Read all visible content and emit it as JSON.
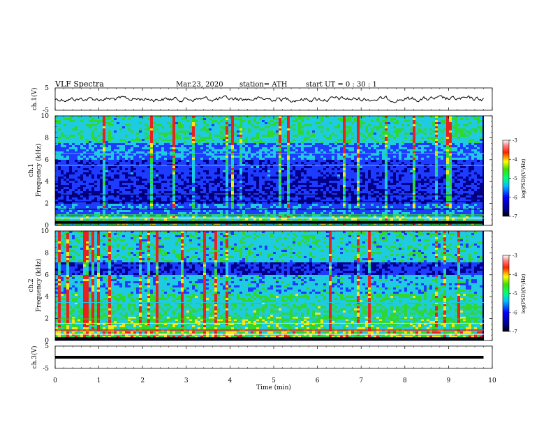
{
  "header": {
    "title": "VLF  Spectra",
    "date": "Mar.23, 2020",
    "station": "station= ATH",
    "start": "start  UT  =   0  : 30 : 1"
  },
  "chart_data": [
    {
      "type": "line",
      "name": "ch1-waveform",
      "ylabel": "ch.1(V)",
      "ylim": [
        -5,
        5
      ],
      "yticks": [
        "5",
        "-5"
      ],
      "trace_color": "#000000"
    },
    {
      "type": "heatmap",
      "name": "ch1-spectrogram",
      "ylabel": "ch.1\nFrequency  (kHz)",
      "ylabel_line1": "ch.1",
      "ylabel_line2": "Frequency  (kHz)",
      "ylim": [
        0,
        10
      ],
      "yticks": [
        "0",
        "2",
        "4",
        "6",
        "8",
        "10"
      ],
      "colorbar": {
        "label": "log(PSD)(V²/Hz)",
        "ticks": [
          "-3",
          "-4",
          "-5",
          "-6",
          "-7"
        ],
        "range": [
          -7,
          -3
        ]
      }
    },
    {
      "type": "heatmap",
      "name": "ch2-spectrogram",
      "ylabel_line1": "ch.2",
      "ylabel_line2": "Frequency  (kHz)",
      "ylim": [
        0,
        10
      ],
      "yticks": [
        "0",
        "2",
        "4",
        "6",
        "8",
        "10"
      ],
      "colorbar": {
        "label": "log(PSD)(V²/Hz)",
        "ticks": [
          "-3",
          "-4",
          "-5",
          "-6",
          "-7"
        ],
        "range": [
          -7,
          -3
        ]
      }
    },
    {
      "type": "line",
      "name": "ch3-waveform",
      "ylabel": "ch.3(V)",
      "ylim": [
        -5,
        5
      ],
      "yticks": [
        "5",
        "-5"
      ],
      "trace_color": "#000000"
    }
  ],
  "xaxis": {
    "label": "Time  (min)",
    "xlim": [
      0,
      10
    ],
    "ticks": [
      "0",
      "1",
      "2",
      "3",
      "4",
      "5",
      "6",
      "7",
      "8",
      "9",
      "10"
    ]
  },
  "colors": {
    "background": "#00008b",
    "mid": "#1e3cff",
    "cyan": "#1ecbe1",
    "green": "#2ed82e",
    "yellow": "#f5e614",
    "red": "#e8231e",
    "pink": "#ffb4c8"
  }
}
